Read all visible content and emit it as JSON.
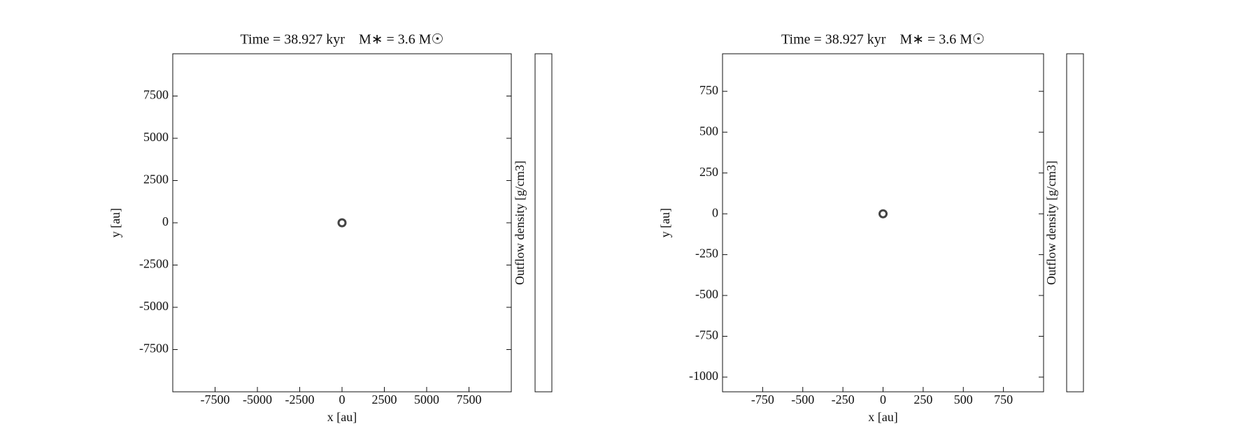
{
  "chart_data": [
    {
      "type": "scatter",
      "title": "Time = 38.927 kyr    M∗ = 3.6 M☉",
      "x_label": "x [au]",
      "y_label": "y [au]",
      "colorbar_label": "Outflow density [g/cm3]",
      "x": [
        0
      ],
      "values": [
        0
      ],
      "color": "#444444",
      "xlim": [
        -10000,
        10000
      ],
      "ylim": [
        -10000,
        10000
      ],
      "xticks": [
        -7500,
        -5000,
        -2500,
        0,
        2500,
        5000,
        7500
      ],
      "yticks": [
        -7500,
        -5000,
        -2500,
        0,
        2500,
        5000,
        7500
      ]
    },
    {
      "type": "scatter",
      "title": "Time = 38.927 kyr    M∗ = 3.6 M☉",
      "x_label": "x [au]",
      "y_label": "y [au]",
      "colorbar_label": "Outflow density [g/cm3]",
      "x": [
        0
      ],
      "values": [
        0
      ],
      "color": "#444444",
      "xlim": [
        -1000,
        1000
      ],
      "ylim": [
        -1090,
        980
      ],
      "xticks": [
        -750,
        -500,
        -250,
        0,
        250,
        500,
        750
      ],
      "yticks": [
        -1000,
        -750,
        -500,
        -250,
        0,
        250,
        500,
        750
      ]
    }
  ]
}
